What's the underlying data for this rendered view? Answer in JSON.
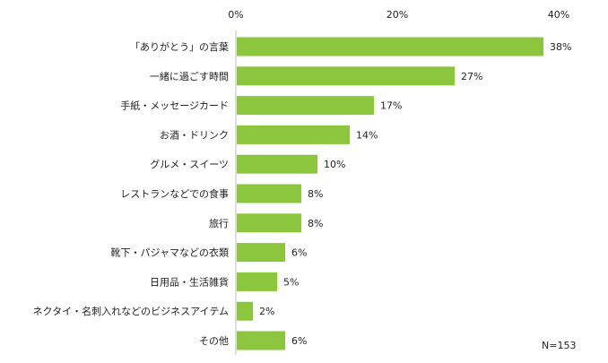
{
  "chart_data": {
    "type": "bar",
    "orientation": "horizontal",
    "categories": [
      "「ありがとう」の言葉",
      "一緒に過ごす時間",
      "手紙・メッセージカード",
      "お酒・ドリンク",
      "グルメ・スイーツ",
      "レストランなどでの食事",
      "旅行",
      "靴下・パジャマなどの衣類",
      "日用品・生活雑貨",
      "ネクタイ・名刺入れなどのビジネスアイテム",
      "その他"
    ],
    "values": [
      38,
      27,
      17,
      14,
      10,
      8,
      8,
      6,
      5,
      2,
      6
    ],
    "value_labels": [
      "38%",
      "27%",
      "17%",
      "14%",
      "10%",
      "8%",
      "8%",
      "6%",
      "5%",
      "2%",
      "6%"
    ],
    "x_ticks": [
      "0%",
      "20%",
      "40%"
    ],
    "xlim": [
      0,
      40
    ],
    "bar_color": "#8CC63F",
    "note": "N=153",
    "grid": false
  }
}
